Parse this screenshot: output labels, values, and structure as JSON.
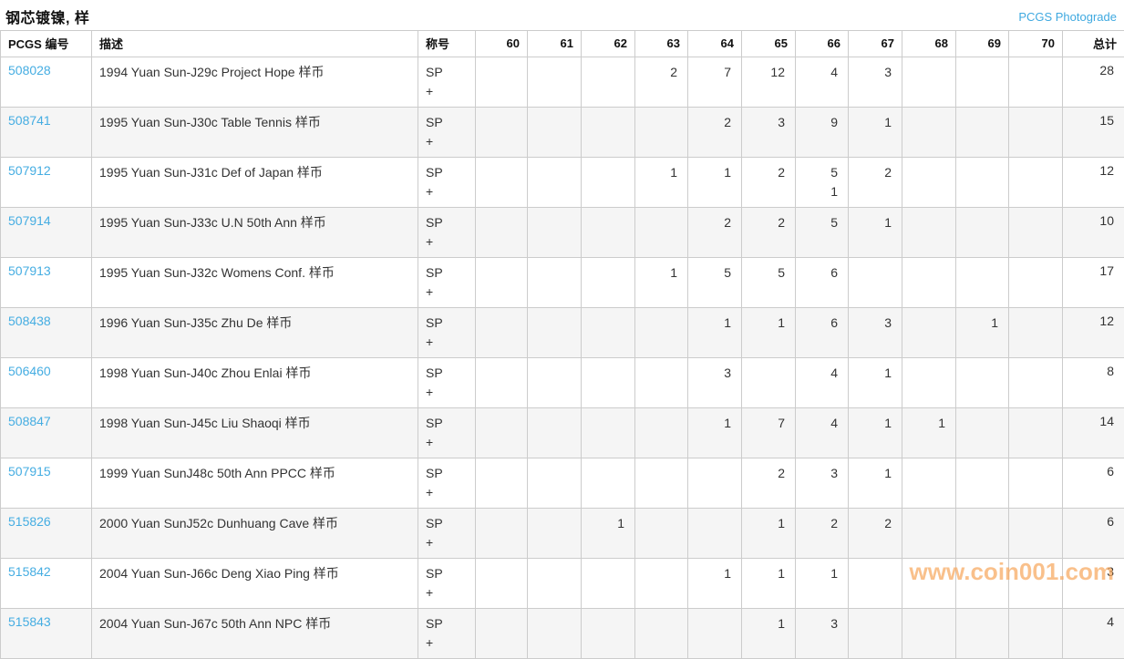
{
  "header": {
    "title": "钢芯镀镍, 样",
    "photograde_label": "PCGS Photograde"
  },
  "table": {
    "headers": [
      "PCGS 编号",
      "描述",
      "称号",
      "60",
      "61",
      "62",
      "63",
      "64",
      "65",
      "66",
      "67",
      "68",
      "69",
      "70",
      "总计"
    ],
    "grade_labels": [
      "60",
      "61",
      "62",
      "63",
      "64",
      "65",
      "66",
      "67",
      "68",
      "69",
      "70"
    ],
    "rows": [
      {
        "pcgs": "508028",
        "desc": "1994 Yuan Sun-J29c Project Hope 样币",
        "designation": [
          "SP",
          "+"
        ],
        "sp": [
          "",
          "",
          "",
          "2",
          "7",
          "12",
          "4",
          "3",
          "",
          "",
          ""
        ],
        "plus": [
          "",
          "",
          "",
          "",
          "",
          "",
          "",
          "",
          "",
          "",
          ""
        ],
        "total": "28"
      },
      {
        "pcgs": "508741",
        "desc": "1995 Yuan Sun-J30c Table Tennis 样币",
        "designation": [
          "SP",
          "+"
        ],
        "sp": [
          "",
          "",
          "",
          "",
          "2",
          "3",
          "9",
          "1",
          "",
          "",
          ""
        ],
        "plus": [
          "",
          "",
          "",
          "",
          "",
          "",
          "",
          "",
          "",
          "",
          ""
        ],
        "total": "15"
      },
      {
        "pcgs": "507912",
        "desc": "1995 Yuan Sun-J31c Def of Japan 样币",
        "designation": [
          "SP",
          "+"
        ],
        "sp": [
          "",
          "",
          "",
          "1",
          "1",
          "2",
          "5",
          "2",
          "",
          "",
          ""
        ],
        "plus": [
          "",
          "",
          "",
          "",
          "",
          "",
          "1",
          "",
          "",
          "",
          ""
        ],
        "total": "12"
      },
      {
        "pcgs": "507914",
        "desc": "1995 Yuan Sun-J33c U.N 50th Ann 样币",
        "designation": [
          "SP",
          "+"
        ],
        "sp": [
          "",
          "",
          "",
          "",
          "2",
          "2",
          "5",
          "1",
          "",
          "",
          ""
        ],
        "plus": [
          "",
          "",
          "",
          "",
          "",
          "",
          "",
          "",
          "",
          "",
          ""
        ],
        "total": "10"
      },
      {
        "pcgs": "507913",
        "desc": "1995 Yuan Sun-J32c Womens Conf. 样币",
        "designation": [
          "SP",
          "+"
        ],
        "sp": [
          "",
          "",
          "",
          "1",
          "5",
          "5",
          "6",
          "",
          "",
          "",
          ""
        ],
        "plus": [
          "",
          "",
          "",
          "",
          "",
          "",
          "",
          "",
          "",
          "",
          ""
        ],
        "total": "17"
      },
      {
        "pcgs": "508438",
        "desc": "1996 Yuan Sun-J35c Zhu De 样币",
        "designation": [
          "SP",
          "+"
        ],
        "sp": [
          "",
          "",
          "",
          "",
          "1",
          "1",
          "6",
          "3",
          "",
          "1",
          ""
        ],
        "plus": [
          "",
          "",
          "",
          "",
          "",
          "",
          "",
          "",
          "",
          "",
          ""
        ],
        "total": "12"
      },
      {
        "pcgs": "506460",
        "desc": "1998 Yuan Sun-J40c Zhou Enlai 样币",
        "designation": [
          "SP",
          "+"
        ],
        "sp": [
          "",
          "",
          "",
          "",
          "3",
          "",
          "4",
          "1",
          "",
          "",
          ""
        ],
        "plus": [
          "",
          "",
          "",
          "",
          "",
          "",
          "",
          "",
          "",
          "",
          ""
        ],
        "total": "8"
      },
      {
        "pcgs": "508847",
        "desc": "1998 Yuan Sun-J45c Liu Shaoqi 样币",
        "designation": [
          "SP",
          "+"
        ],
        "sp": [
          "",
          "",
          "",
          "",
          "1",
          "7",
          "4",
          "1",
          "1",
          "",
          ""
        ],
        "plus": [
          "",
          "",
          "",
          "",
          "",
          "",
          "",
          "",
          "",
          "",
          ""
        ],
        "total": "14"
      },
      {
        "pcgs": "507915",
        "desc": "1999 Yuan SunJ48c 50th Ann PPCC 样币",
        "designation": [
          "SP",
          "+"
        ],
        "sp": [
          "",
          "",
          "",
          "",
          "",
          "2",
          "3",
          "1",
          "",
          "",
          ""
        ],
        "plus": [
          "",
          "",
          "",
          "",
          "",
          "",
          "",
          "",
          "",
          "",
          ""
        ],
        "total": "6"
      },
      {
        "pcgs": "515826",
        "desc": "2000 Yuan SunJ52c Dunhuang Cave 样币",
        "designation": [
          "SP",
          "+"
        ],
        "sp": [
          "",
          "",
          "1",
          "",
          "",
          "1",
          "2",
          "2",
          "",
          "",
          ""
        ],
        "plus": [
          "",
          "",
          "",
          "",
          "",
          "",
          "",
          "",
          "",
          "",
          ""
        ],
        "total": "6"
      },
      {
        "pcgs": "515842",
        "desc": "2004 Yuan Sun-J66c Deng Xiao Ping 样币",
        "designation": [
          "SP",
          "+"
        ],
        "sp": [
          "",
          "",
          "",
          "",
          "1",
          "1",
          "1",
          "",
          "",
          "",
          ""
        ],
        "plus": [
          "",
          "",
          "",
          "",
          "",
          "",
          "",
          "",
          "",
          "",
          ""
        ],
        "total": "3"
      },
      {
        "pcgs": "515843",
        "desc": "2004 Yuan Sun-J67c 50th Ann NPC 样币",
        "designation": [
          "SP",
          "+"
        ],
        "sp": [
          "",
          "",
          "",
          "",
          "",
          "1",
          "3",
          "",
          "",
          "",
          ""
        ],
        "plus": [
          "",
          "",
          "",
          "",
          "",
          "",
          "",
          "",
          "",
          "",
          ""
        ],
        "total": "4"
      }
    ]
  },
  "watermark": "www.coin001.com",
  "colors": {
    "link_blue": "#45ade2",
    "border": "#cccccc",
    "stripe": "#f5f5f5",
    "watermark_orange": "#f7a95f"
  }
}
